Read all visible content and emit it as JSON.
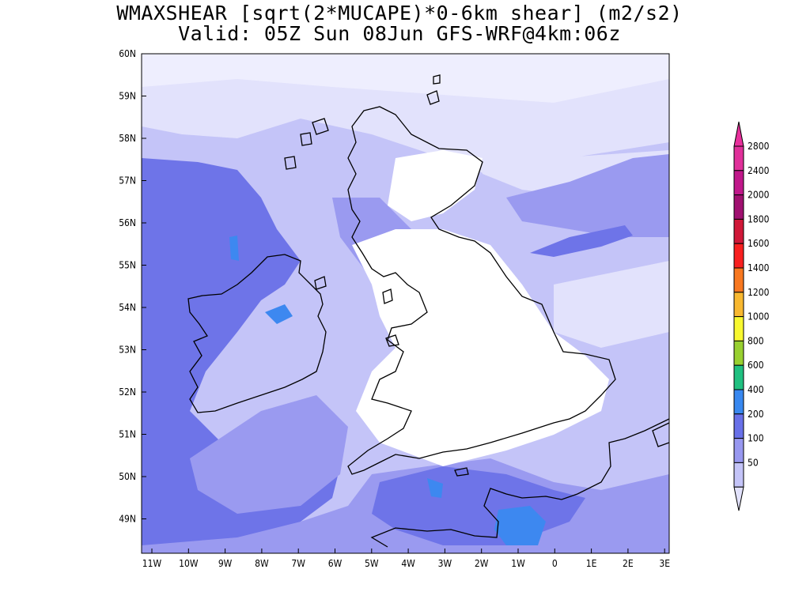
{
  "title": {
    "line1": "WMAXSHEAR [sqrt(2*MUCAPE)*0-6km shear] (m2/s2)",
    "line2": "Valid: 05Z Sun 08Jun GFS-WRF@4km:06z"
  },
  "map": {
    "lat_labels": [
      "60N",
      "59N",
      "58N",
      "57N",
      "56N",
      "55N",
      "54N",
      "53N",
      "52N",
      "51N",
      "50N",
      "49N"
    ],
    "lon_labels": [
      "11W",
      "10W",
      "9W",
      "8W",
      "7W",
      "6W",
      "5W",
      "4W",
      "3W",
      "2W",
      "1W",
      "0",
      "1E",
      "2E",
      "3E"
    ]
  },
  "colorbar": {
    "levels": [
      {
        "label": "2800",
        "color": "#e0309a"
      },
      {
        "label": "2400",
        "color": "#c0188a"
      },
      {
        "label": "2000",
        "color": "#a01070"
      },
      {
        "label": "1800",
        "color": "#d01838"
      },
      {
        "label": "1600",
        "color": "#f82020"
      },
      {
        "label": "1400",
        "color": "#f87820"
      },
      {
        "label": "1200",
        "color": "#f8b830"
      },
      {
        "label": "1000",
        "color": "#f8f830"
      },
      {
        "label": "800",
        "color": "#98d030"
      },
      {
        "label": "600",
        "color": "#20c080"
      },
      {
        "label": "400",
        "color": "#3888f0"
      },
      {
        "label": "200",
        "color": "#6870e8"
      },
      {
        "label": "100",
        "color": "#9898f0"
      },
      {
        "label": "50",
        "color": "#c4c4f8"
      }
    ],
    "below_color": "#e2e2fc",
    "above_color": "#e8309c"
  }
}
